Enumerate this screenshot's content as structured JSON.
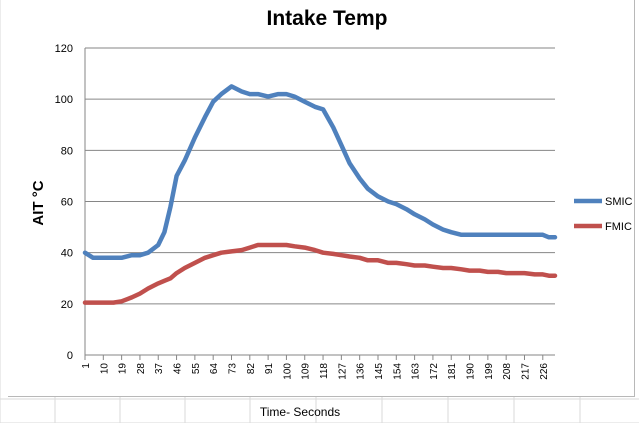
{
  "chart_data": {
    "type": "line",
    "title": "Intake Temp",
    "xlabel": "Time- Seconds",
    "ylabel": "AIT °C",
    "ylim": [
      0,
      120
    ],
    "yticks": [
      "0",
      "20",
      "40",
      "60",
      "80",
      "100",
      "120"
    ],
    "categories": [
      "1",
      "10",
      "19",
      "28",
      "37",
      "46",
      "55",
      "64",
      "73",
      "82",
      "91",
      "100",
      "109",
      "118",
      "127",
      "136",
      "145",
      "154",
      "163",
      "172",
      "181",
      "190",
      "199",
      "208",
      "217",
      "226"
    ],
    "x": [
      1,
      5,
      10,
      15,
      19,
      24,
      28,
      32,
      37,
      40,
      43,
      46,
      50,
      55,
      60,
      64,
      68,
      73,
      78,
      82,
      86,
      91,
      96,
      100,
      104,
      109,
      114,
      118,
      123,
      127,
      131,
      136,
      140,
      145,
      150,
      154,
      159,
      163,
      168,
      172,
      177,
      181,
      186,
      190,
      195,
      199,
      204,
      208,
      213,
      217,
      222,
      226,
      229,
      232
    ],
    "series": [
      {
        "name": "SMIC",
        "color": "#4F81BD",
        "values": [
          40,
          38,
          38,
          38,
          38,
          39,
          39,
          40,
          43,
          48,
          58,
          70,
          76,
          85,
          93,
          99,
          102,
          105,
          103,
          102,
          102,
          101,
          102,
          102,
          101,
          99,
          97,
          96,
          89,
          82,
          75,
          69,
          65,
          62,
          60,
          59,
          57,
          55,
          53,
          51,
          49,
          48,
          47,
          47,
          47,
          47,
          47,
          47,
          47,
          47,
          47,
          47,
          46,
          46
        ]
      },
      {
        "name": "FMIC",
        "color": "#C0504D",
        "values": [
          20.5,
          20.5,
          20.5,
          20.5,
          21,
          22.5,
          24,
          26,
          28,
          29,
          30,
          32,
          34,
          36,
          38,
          39,
          40,
          40.5,
          41,
          42,
          43,
          43,
          43,
          43,
          42.5,
          42,
          41,
          40,
          39.5,
          39,
          38.5,
          38,
          37,
          37,
          36,
          36,
          35.5,
          35,
          35,
          34.5,
          34,
          34,
          33.5,
          33,
          33,
          32.5,
          32.5,
          32,
          32,
          32,
          31.5,
          31.5,
          31,
          31
        ]
      }
    ],
    "grid": true,
    "legend_position": "right"
  }
}
